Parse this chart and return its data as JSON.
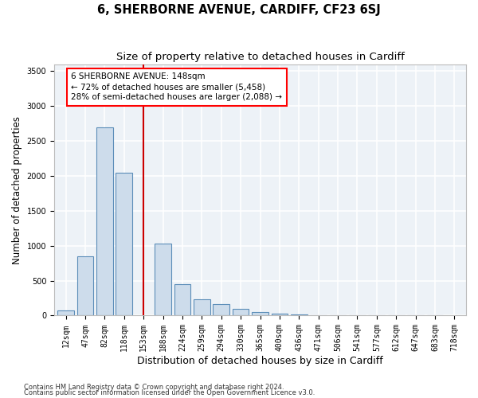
{
  "title": "6, SHERBORNE AVENUE, CARDIFF, CF23 6SJ",
  "subtitle": "Size of property relative to detached houses in Cardiff",
  "xlabel": "Distribution of detached houses by size in Cardiff",
  "ylabel": "Number of detached properties",
  "footnote1": "Contains HM Land Registry data © Crown copyright and database right 2024.",
  "footnote2": "Contains public sector information licensed under the Open Government Licence v3.0.",
  "annotation_line1": "6 SHERBORNE AVENUE: 148sqm",
  "annotation_line2": "← 72% of detached houses are smaller (5,458)",
  "annotation_line3": "28% of semi-detached houses are larger (2,088) →",
  "bar_color": "#cddceb",
  "bar_edge_color": "#5b8db8",
  "line_color": "#cc0000",
  "categories": [
    "12sqm",
    "47sqm",
    "82sqm",
    "118sqm",
    "153sqm",
    "188sqm",
    "224sqm",
    "259sqm",
    "294sqm",
    "330sqm",
    "365sqm",
    "400sqm",
    "436sqm",
    "471sqm",
    "506sqm",
    "541sqm",
    "577sqm",
    "612sqm",
    "647sqm",
    "683sqm",
    "718sqm"
  ],
  "values": [
    75,
    850,
    2700,
    2050,
    0,
    1030,
    450,
    230,
    160,
    95,
    55,
    30,
    20,
    10,
    8,
    5,
    3,
    2,
    1,
    1,
    0
  ],
  "ylim": [
    0,
    3600
  ],
  "yticks": [
    0,
    500,
    1000,
    1500,
    2000,
    2500,
    3000,
    3500
  ],
  "property_bin_index": 4,
  "background_color": "#edf2f7",
  "grid_color": "#ffffff",
  "title_fontsize": 10.5,
  "subtitle_fontsize": 9.5,
  "ylabel_fontsize": 8.5,
  "xlabel_fontsize": 9,
  "tick_fontsize": 7,
  "annotation_fontsize": 7.5,
  "footnote_fontsize": 6
}
